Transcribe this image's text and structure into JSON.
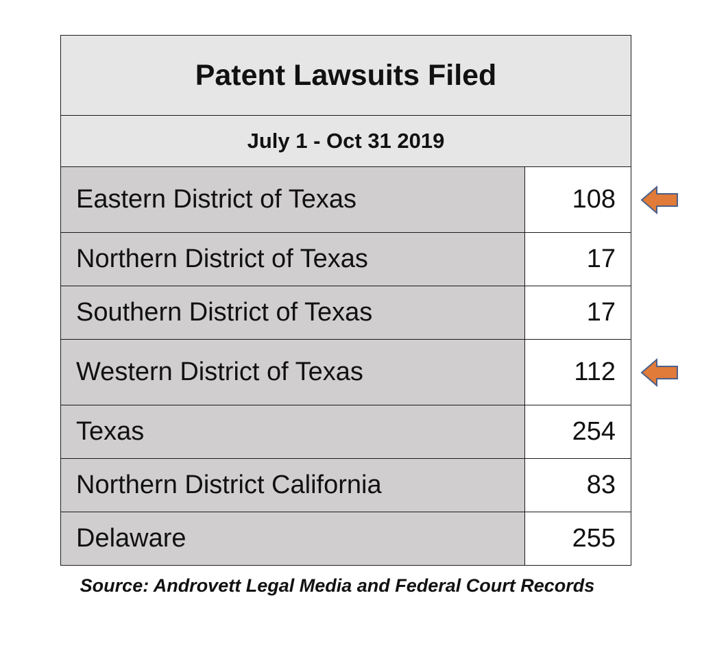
{
  "chart_data": {
    "type": "table",
    "title": "Patent Lawsuits Filed",
    "subtitle": "July 1 - Oct 31 2019",
    "rows": [
      {
        "label": "Eastern District of Texas",
        "value": "108",
        "highlighted": true
      },
      {
        "label": "Northern District of Texas",
        "value": "17",
        "highlighted": false
      },
      {
        "label": "Southern District of Texas",
        "value": "17",
        "highlighted": false
      },
      {
        "label": "Western District of Texas",
        "value": "112",
        "highlighted": true
      },
      {
        "label": "Texas",
        "value": "254",
        "highlighted": false
      },
      {
        "label": "Northern District California",
        "value": "83",
        "highlighted": false
      },
      {
        "label": "Delaware",
        "value": "255",
        "highlighted": false
      }
    ],
    "source": "Source: Androvett Legal Media and Federal Court Records"
  },
  "colors": {
    "header_background": "#e6e6e6",
    "label_column_background": "#d0cece",
    "value_column_background": "#ffffff",
    "arrow_fill": "#e07b39",
    "arrow_stroke": "#4a5f8a"
  },
  "icons": {
    "highlight_arrow": "left-arrow-icon"
  }
}
